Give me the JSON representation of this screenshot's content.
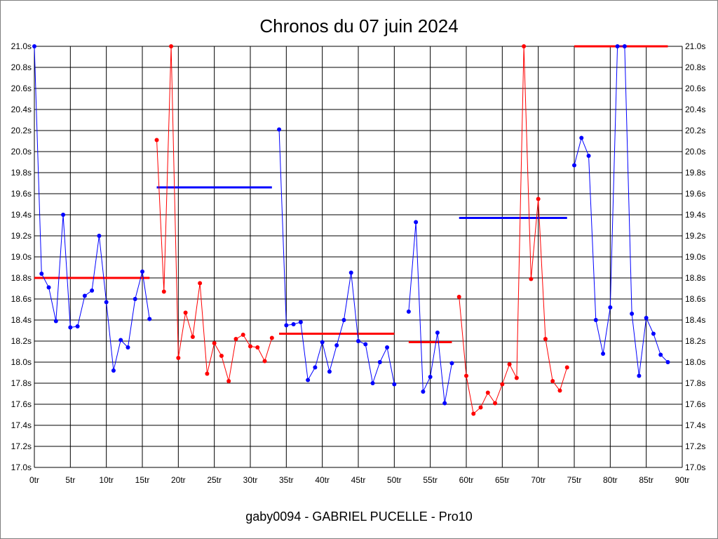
{
  "chart_data": {
    "type": "line",
    "title": "Chronos du 07 juin 2024",
    "subtitle": "gaby0094 - GABRIEL PUCELLE - Pro10",
    "xlabel": "",
    "ylabel": "",
    "xlim": [
      0,
      90
    ],
    "ylim": [
      17.0,
      21.0
    ],
    "grid": true,
    "x_ticks": [
      0,
      5,
      10,
      15,
      20,
      25,
      30,
      35,
      40,
      45,
      50,
      55,
      60,
      65,
      70,
      75,
      80,
      85,
      90
    ],
    "x_tick_labels": [
      "0tr",
      "5tr",
      "10tr",
      "15tr",
      "20tr",
      "25tr",
      "30tr",
      "35tr",
      "40tr",
      "45tr",
      "50tr",
      "55tr",
      "60tr",
      "65tr",
      "70tr",
      "75tr",
      "80tr",
      "85tr",
      "90tr"
    ],
    "y_ticks": [
      17.0,
      17.2,
      17.4,
      17.6,
      17.8,
      18.0,
      18.2,
      18.4,
      18.6,
      18.8,
      19.0,
      19.2,
      19.4,
      19.6,
      19.8,
      20.0,
      20.2,
      20.4,
      20.6,
      20.8,
      21.0
    ],
    "y_tick_labels": [
      "17.0s",
      "17.2s",
      "17.4s",
      "17.6s",
      "17.8s",
      "18.0s",
      "18.2s",
      "18.4s",
      "18.6s",
      "18.8s",
      "19.0s",
      "19.2s",
      "19.4s",
      "19.6s",
      "19.8s",
      "20.0s",
      "20.2s",
      "20.4s",
      "20.6s",
      "20.8s",
      "21.0s"
    ],
    "series": [
      {
        "name": "stint-1",
        "color": "#0000ff",
        "x": [
          0,
          1,
          2,
          3,
          4,
          5,
          6,
          7,
          8,
          9,
          10,
          11,
          12,
          13,
          14,
          15,
          16
        ],
        "values": [
          21.0,
          18.84,
          18.71,
          18.39,
          19.4,
          18.33,
          18.34,
          18.63,
          18.68,
          19.2,
          18.57,
          17.92,
          18.21,
          18.14,
          18.6,
          18.86,
          18.41
        ]
      },
      {
        "name": "stint-2",
        "color": "#ff0000",
        "x": [
          17,
          18,
          19,
          20,
          21,
          22,
          23,
          24,
          25,
          26,
          27,
          28,
          29,
          30,
          31,
          32,
          33
        ],
        "values": [
          20.11,
          18.67,
          21.0,
          18.04,
          18.47,
          18.24,
          18.75,
          17.89,
          18.18,
          18.06,
          17.82,
          18.22,
          18.26,
          18.15,
          18.14,
          18.01,
          18.23
        ]
      },
      {
        "name": "stint-3",
        "color": "#0000ff",
        "x": [
          34,
          35,
          36,
          37,
          38,
          39,
          40,
          41,
          42,
          43,
          44,
          45,
          46,
          47,
          48,
          49,
          50
        ],
        "values": [
          20.21,
          18.35,
          18.36,
          18.38,
          17.83,
          17.95,
          18.19,
          17.91,
          18.16,
          18.4,
          18.85,
          18.2,
          18.17,
          17.8,
          18.0,
          18.14,
          17.79
        ]
      },
      {
        "name": "stint-4",
        "color": "#0000ff",
        "x": [
          52,
          53,
          54,
          55,
          56,
          57,
          58
        ],
        "values": [
          18.48,
          19.33,
          17.72,
          17.86,
          18.28,
          17.61,
          17.99
        ]
      },
      {
        "name": "stint-5",
        "color": "#ff0000",
        "x": [
          59,
          60,
          61,
          62,
          63,
          64,
          65,
          66,
          67,
          68,
          69,
          70,
          71,
          72,
          73,
          74
        ],
        "values": [
          18.62,
          17.87,
          17.51,
          17.57,
          17.71,
          17.61,
          17.79,
          17.98,
          17.85,
          21.0,
          18.79,
          19.55,
          18.22,
          17.82,
          17.73,
          17.95
        ]
      },
      {
        "name": "stint-6",
        "color": "#0000ff",
        "x": [
          75,
          76,
          77,
          78,
          79,
          80,
          81,
          82,
          83,
          84,
          85,
          86,
          87,
          88
        ],
        "values": [
          19.87,
          20.13,
          19.96,
          18.4,
          18.08,
          18.52,
          21.0,
          21.0,
          18.46,
          17.87,
          18.42,
          18.27,
          18.07,
          18.0
        ]
      }
    ],
    "averages": [
      {
        "name": "avg-1",
        "color": "#ff0000",
        "x_start": 0,
        "x_end": 16,
        "value": 18.8
      },
      {
        "name": "avg-2",
        "color": "#0000ff",
        "x_start": 17,
        "x_end": 33,
        "value": 19.66
      },
      {
        "name": "avg-3",
        "color": "#ff0000",
        "x_start": 34,
        "x_end": 50,
        "value": 18.27
      },
      {
        "name": "avg-4",
        "color": "#ff0000",
        "x_start": 52,
        "x_end": 58,
        "value": 18.19
      },
      {
        "name": "avg-5",
        "color": "#0000ff",
        "x_start": 59,
        "x_end": 74,
        "value": 19.37
      },
      {
        "name": "avg-6",
        "color": "#ff0000",
        "x_start": 75,
        "x_end": 88,
        "value": 21.0
      }
    ]
  }
}
